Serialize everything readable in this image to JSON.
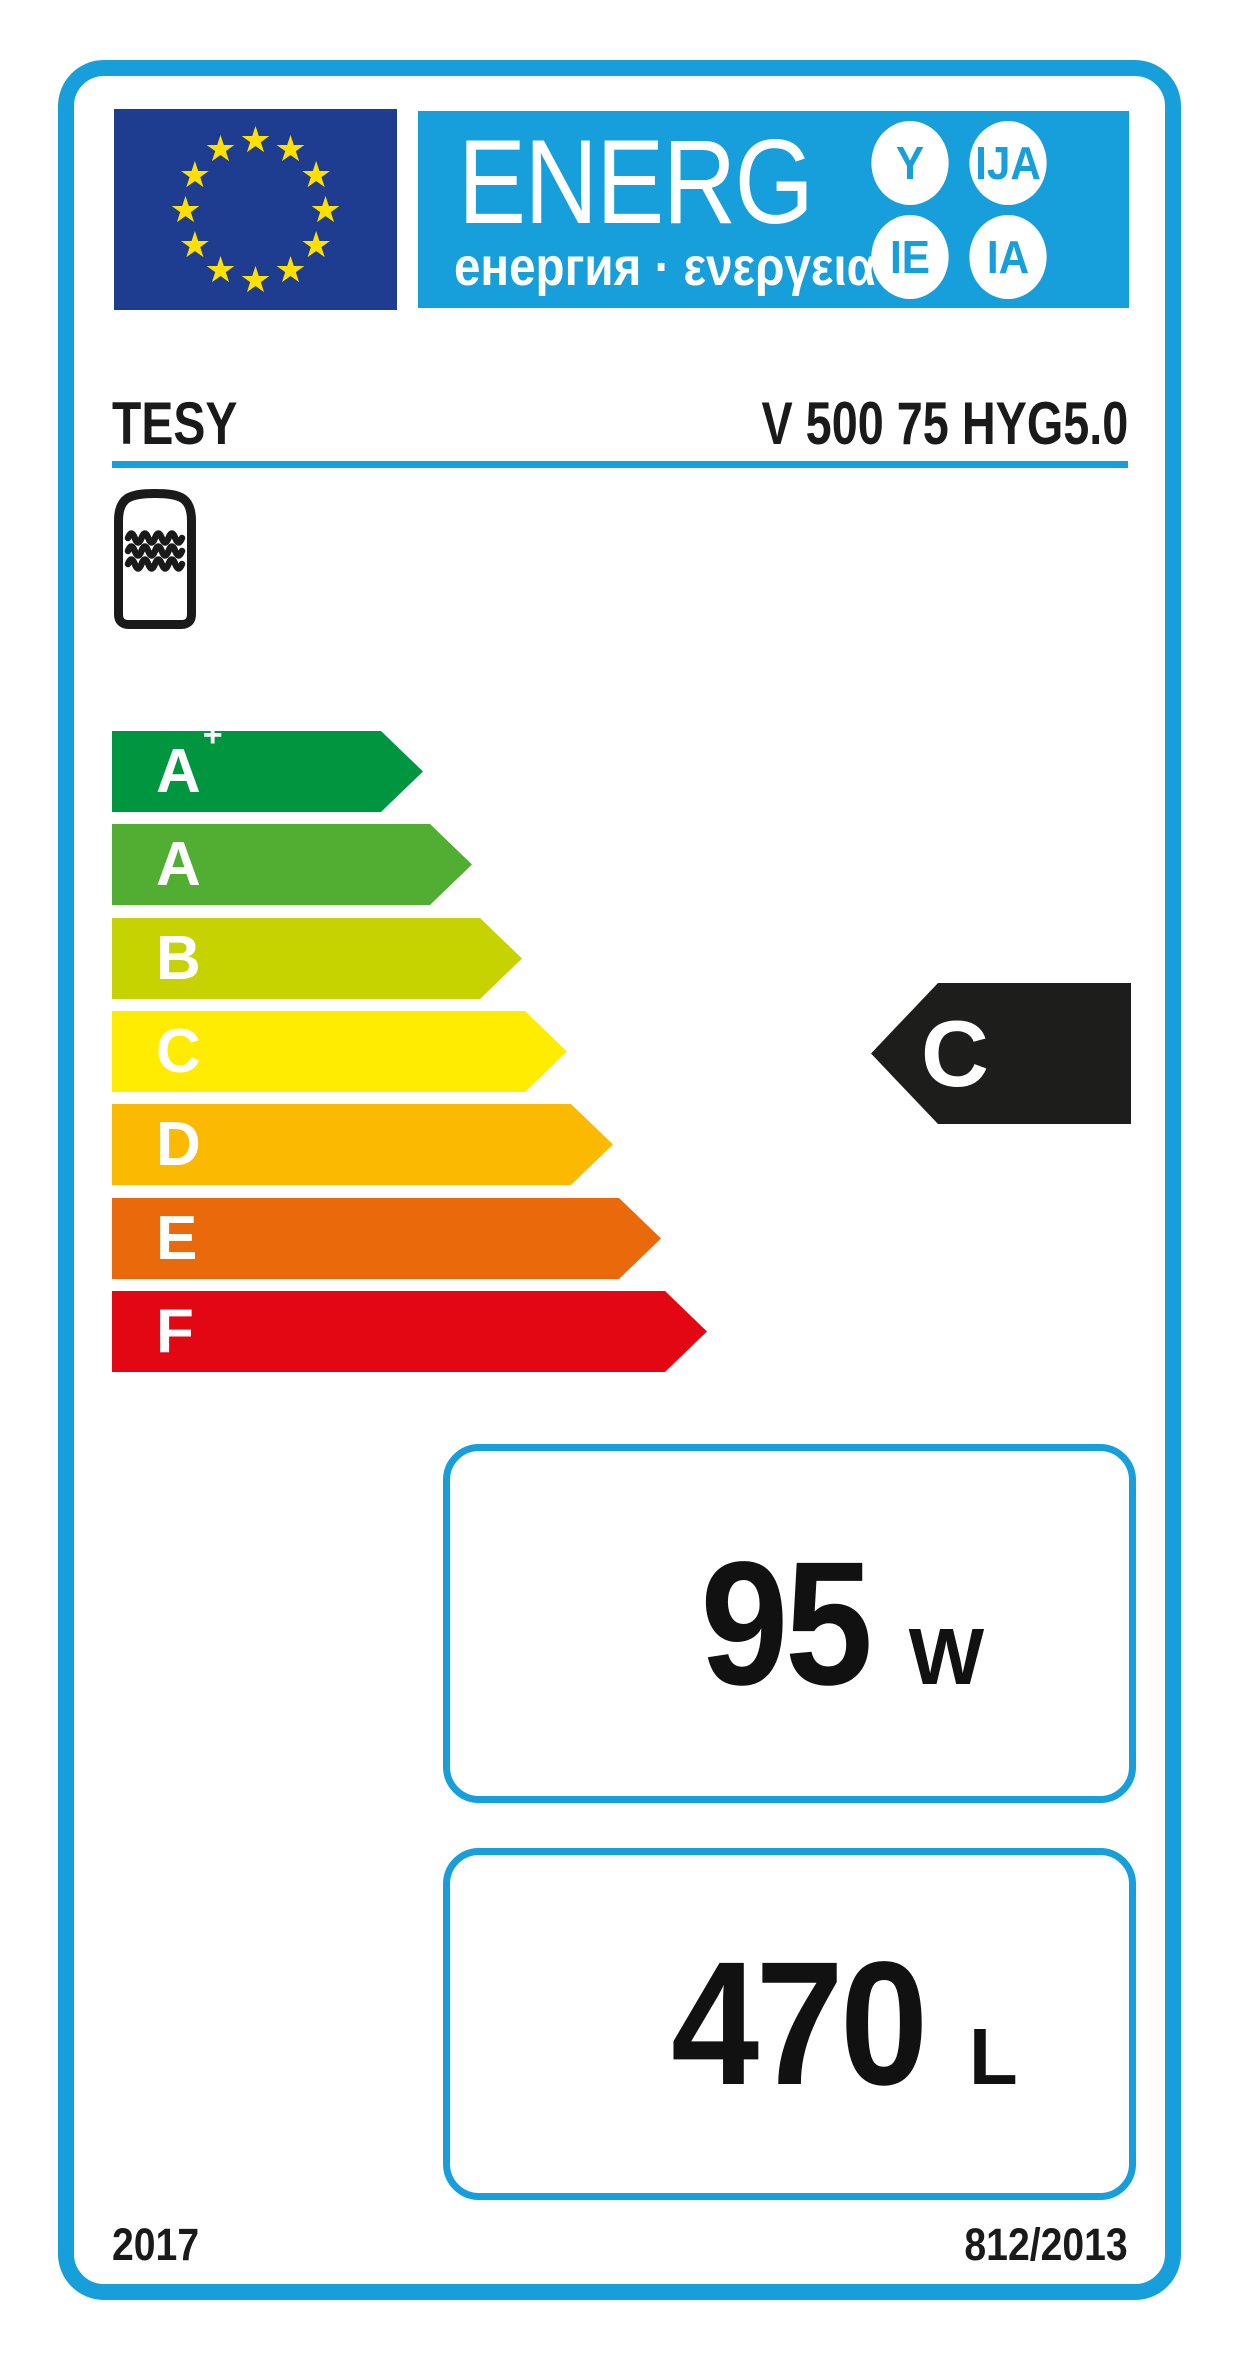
{
  "header": {
    "word": "ENERG",
    "subtitle": "енергия · ενεργεια",
    "suffixes": [
      "Y",
      "IJA",
      "IE",
      "IA"
    ]
  },
  "eu_flag": {
    "star_glyph": "★",
    "star_count": 12,
    "flag_color": "#1E3C90",
    "star_color": "#FFE000"
  },
  "product": {
    "brand": "TESY",
    "model": "V 500 75 HYG5.0"
  },
  "rating": {
    "current_class": "C",
    "pointer_color": "#1D1D1B"
  },
  "scale": [
    {
      "label": "A",
      "sup": "+",
      "color": "#009640"
    },
    {
      "label": "A",
      "sup": "",
      "color": "#52AE32"
    },
    {
      "label": "B",
      "sup": "",
      "color": "#C6D300"
    },
    {
      "label": "C",
      "sup": "",
      "color": "#FFEC00"
    },
    {
      "label": "D",
      "sup": "",
      "color": "#FBBA00"
    },
    {
      "label": "E",
      "sup": "",
      "color": "#E9690B"
    },
    {
      "label": "F",
      "sup": "",
      "color": "#E30613"
    }
  ],
  "metrics": [
    {
      "value": "95",
      "unit": "W"
    },
    {
      "value": "470",
      "unit": "L"
    }
  ],
  "footer": {
    "year": "2017",
    "regulation": "812/2013"
  },
  "colors": {
    "accent_blue": "#169FDB"
  }
}
